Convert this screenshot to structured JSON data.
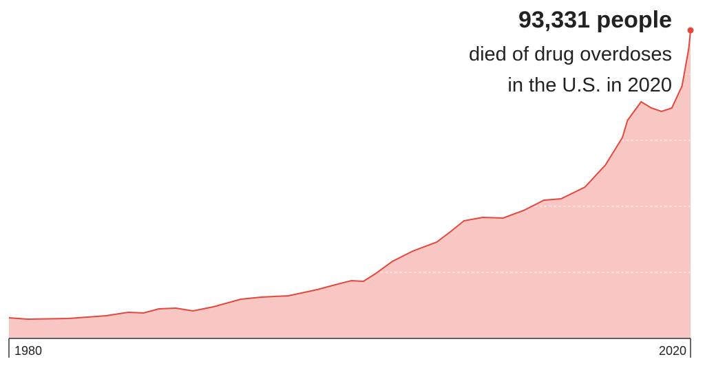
{
  "chart_data": {
    "type": "area",
    "annotation": {
      "headline": "93,331 people",
      "lines": [
        "died of drug overdoses",
        "in the U.S. in 2020"
      ]
    },
    "x": [
      1980,
      1981.1,
      1983.5,
      1985.7,
      1987.0,
      1987.9,
      1988.8,
      1989.8,
      1990.8,
      1992.0,
      1993.6,
      1994.8,
      1996.4,
      1998.1,
      1999.3,
      2000.1,
      2000.8,
      2001.5,
      2002.5,
      2003.7,
      2005.1,
      2005.9,
      2006.7,
      2007.8,
      2009.0,
      2010.2,
      2011.4,
      2012.4,
      2013.8,
      2015.0,
      2016.0,
      2016.3,
      2017.1,
      2017.7,
      2018.3,
      2018.9,
      2019.5,
      2019.9,
      2020
    ],
    "series": [
      {
        "color": "#e5473c",
        "fill": "#f8c6c3",
        "values": [
          6250,
          5830,
          6040,
          6880,
          7920,
          7710,
          8960,
          9170,
          8330,
          9580,
          11880,
          12500,
          12920,
          14790,
          16460,
          17500,
          17290,
          19580,
          23330,
          26460,
          29170,
          32290,
          35625,
          36670,
          36460,
          38750,
          41875,
          42290,
          45830,
          52500,
          60830,
          66040,
          71670,
          69790,
          68750,
          69790,
          76460,
          87920,
          93331
        ]
      }
    ],
    "xlim": [
      1980,
      2020
    ],
    "xticks": [
      1980,
      2020
    ],
    "ylim": [
      0,
      100000
    ],
    "yticks": [
      20000,
      40000,
      60000,
      80000
    ],
    "grid": true
  }
}
